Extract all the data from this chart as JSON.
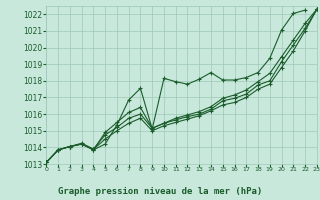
{
  "title": "Graphe pression niveau de la mer (hPa)",
  "bg_color": "#c8e8dc",
  "grid_color": "#9dc8b8",
  "line_color": "#1a5c2a",
  "xlim": [
    0,
    23
  ],
  "ylim": [
    1013,
    1022.5
  ],
  "yticks": [
    1013,
    1014,
    1015,
    1016,
    1017,
    1018,
    1019,
    1020,
    1021,
    1022
  ],
  "xticks": [
    0,
    1,
    2,
    3,
    4,
    5,
    6,
    7,
    8,
    9,
    10,
    11,
    12,
    13,
    14,
    15,
    16,
    17,
    18,
    19,
    20,
    21,
    22,
    23
  ],
  "series": [
    [
      1013.1,
      1013.85,
      1014.05,
      1014.2,
      1013.85,
      1014.2,
      1015.35,
      1016.85,
      1017.55,
      1015.1,
      1018.15,
      1017.95,
      1017.8,
      1018.1,
      1018.5,
      1018.05,
      1018.05,
      1018.2,
      1018.5,
      1019.35,
      1021.05,
      1022.05,
      1022.25,
      null
    ],
    [
      1013.1,
      1013.85,
      1014.05,
      1014.2,
      1013.85,
      1014.9,
      1015.5,
      1016.1,
      1016.4,
      1015.15,
      1015.45,
      1015.75,
      1015.95,
      1016.15,
      1016.45,
      1016.95,
      1017.15,
      1017.45,
      1017.95,
      1018.45,
      1019.45,
      1020.45,
      1021.45,
      1022.3
    ],
    [
      1013.1,
      1013.85,
      1014.05,
      1014.25,
      1013.9,
      1014.75,
      1015.2,
      1015.75,
      1016.0,
      1015.15,
      1015.45,
      1015.65,
      1015.85,
      1016.0,
      1016.3,
      1016.8,
      1016.95,
      1017.2,
      1017.75,
      1018.0,
      1019.15,
      1020.15,
      1021.15,
      1022.3
    ],
    [
      1013.1,
      1013.85,
      1014.05,
      1014.2,
      1013.88,
      1014.5,
      1015.0,
      1015.45,
      1015.75,
      1015.0,
      1015.3,
      1015.5,
      1015.7,
      1015.9,
      1016.2,
      1016.55,
      1016.7,
      1017.0,
      1017.5,
      1017.8,
      1018.8,
      1019.8,
      1021.0,
      1022.3
    ]
  ]
}
